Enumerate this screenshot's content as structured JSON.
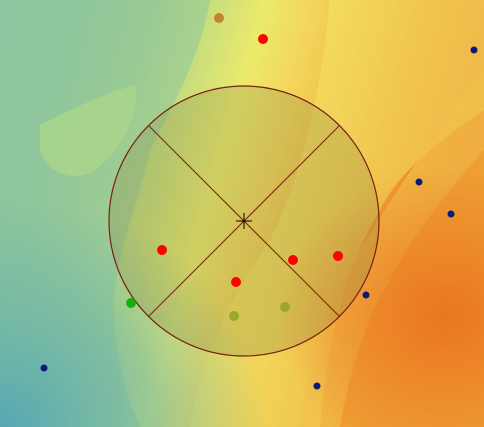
{
  "map": {
    "type": "interpolated-surface-with-sample-points",
    "colors": {
      "surface_low": "#5fb0b0",
      "surface_mid_low": "#8fc79a",
      "surface_mid": "#d7e37a",
      "surface_high": "#f0c84d",
      "surface_peak": "#ec7f24",
      "search_circle_fill": "#8a8a44",
      "search_circle_stroke": "#7a1e14",
      "crosshair": "#000000"
    },
    "sample_points": [
      {
        "id": "p01",
        "color": "#c0852a",
        "symbol": "circle"
      },
      {
        "id": "p02",
        "color": "#ff0000",
        "symbol": "circle"
      },
      {
        "id": "p03",
        "color": "#0a1a7a",
        "symbol": "circle"
      },
      {
        "id": "p04",
        "color": "#0a1a7a",
        "symbol": "circle"
      },
      {
        "id": "p05",
        "color": "#0a1a7a",
        "symbol": "circle"
      },
      {
        "id": "p06",
        "color": "#ff0000",
        "symbol": "circle"
      },
      {
        "id": "p07",
        "color": "#ff0000",
        "symbol": "circle"
      },
      {
        "id": "p08",
        "color": "#ff0000",
        "symbol": "circle"
      },
      {
        "id": "p09",
        "color": "#ff0000",
        "symbol": "circle"
      },
      {
        "id": "p10",
        "color": "#0a1a7a",
        "symbol": "circle"
      },
      {
        "id": "p11",
        "color": "#12b012",
        "symbol": "circle"
      },
      {
        "id": "p12",
        "color": "#9ba82a",
        "symbol": "circle"
      },
      {
        "id": "p13",
        "color": "#9ba82a",
        "symbol": "circle"
      },
      {
        "id": "p14",
        "color": "#0a1a7a",
        "symbol": "circle"
      },
      {
        "id": "p15",
        "color": "#0a1a7a",
        "symbol": "circle"
      }
    ],
    "search_neighborhood": {
      "shape": "circle",
      "sectors": 4,
      "center_marker": "crosshair"
    }
  }
}
